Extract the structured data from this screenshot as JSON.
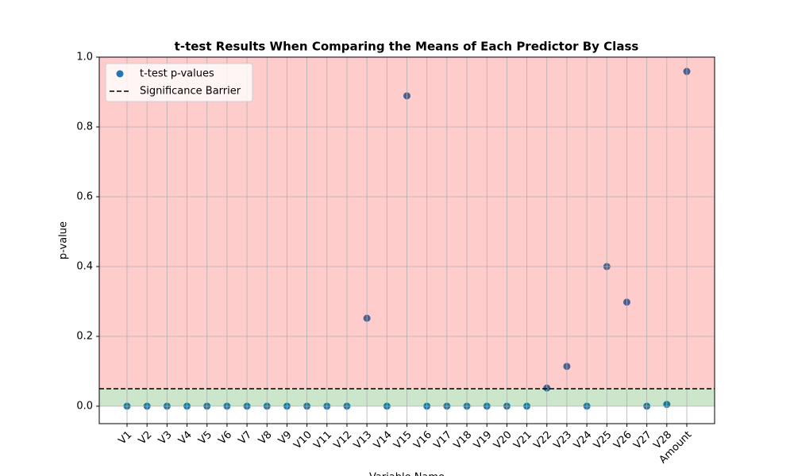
{
  "chart_data": {
    "type": "scatter",
    "title": "t-test Results When Comparing the Means of Each Predictor By Class",
    "x_label": "Variable Name",
    "y_label": "p-value",
    "categories": [
      "V1",
      "V2",
      "V3",
      "V4",
      "V5",
      "V6",
      "V7",
      "V8",
      "V9",
      "V10",
      "V11",
      "V12",
      "V13",
      "V14",
      "V15",
      "V16",
      "V17",
      "V18",
      "V19",
      "V20",
      "V21",
      "V22",
      "V23",
      "V24",
      "V25",
      "V26",
      "V27",
      "V28",
      "Amount"
    ],
    "series": [
      {
        "name": "t-test p-values",
        "color": "#1f77b4",
        "values": [
          0,
          0,
          0,
          0,
          0,
          0,
          0,
          0,
          0,
          0,
          0,
          0,
          0.252,
          0,
          0.889,
          0,
          0,
          0,
          0,
          0,
          0,
          0.052,
          0.114,
          0,
          0.4,
          0.298,
          0,
          0.005,
          0.959
        ]
      }
    ],
    "threshold": {
      "name": "Significance Barrier",
      "value": 0.05,
      "color": "#000000"
    },
    "regions": [
      {
        "from": 0.05,
        "to": 1.0,
        "color": "red"
      },
      {
        "from": 0,
        "to": 0.05,
        "color": "green"
      }
    ],
    "ylim": [
      -0.05,
      1.0
    ],
    "yticks": [
      {
        "value": 0,
        "label": "0.0"
      },
      0.2,
      0.4,
      0.6,
      0.8,
      {
        "value": 1.0,
        "label": "1.0"
      }
    ],
    "grid": true,
    "legend": "upper left"
  }
}
